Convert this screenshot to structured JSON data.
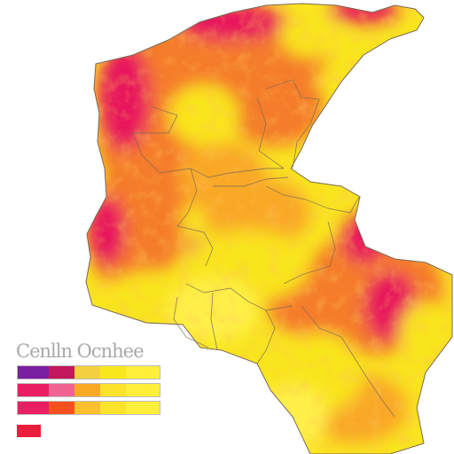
{
  "legend": {
    "title": "Cenlln Ocnhee",
    "rows": [
      {
        "segments": [
          "#7b1fa2",
          "#c2185b",
          "#f4d03f",
          "#f8e71c",
          "#ffef3a"
        ]
      },
      {
        "segments": [
          "#e91e63",
          "#f06292",
          "#f9a825",
          "#fbe32c",
          "#ffef3a"
        ]
      },
      {
        "segments": [
          "#e91e63",
          "#f4511e",
          "#fbc02d",
          "#fbe32c",
          "#ffef3a"
        ]
      }
    ],
    "single_swatch": "#e91e3c"
  },
  "colors": {
    "hot": "#e8175d",
    "orange": "#f57c2a",
    "amber": "#f9a825",
    "yellow": "#f9e51f",
    "light_yellow": "#fff04a",
    "border": "#7a6a55",
    "purple_edge": "#6a1b9a"
  }
}
